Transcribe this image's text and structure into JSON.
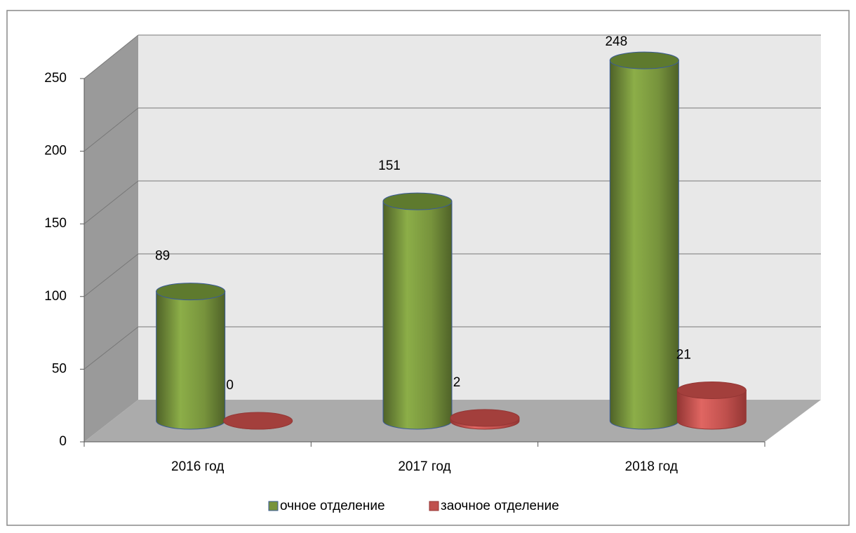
{
  "chart_data": {
    "type": "bar3d",
    "categories": [
      "2016 год",
      "2017 год",
      "2018 год"
    ],
    "series": [
      {
        "name": "очное отделение",
        "color": "#77933c",
        "values": [
          89,
          151,
          248
        ]
      },
      {
        "name": "заочное отделение",
        "color": "#c0504d",
        "values": [
          0,
          2,
          21
        ]
      }
    ],
    "ylim": [
      0,
      250
    ],
    "yticks": [
      0,
      50,
      100,
      150,
      200,
      250
    ],
    "grid": true,
    "legend": "bottom"
  }
}
